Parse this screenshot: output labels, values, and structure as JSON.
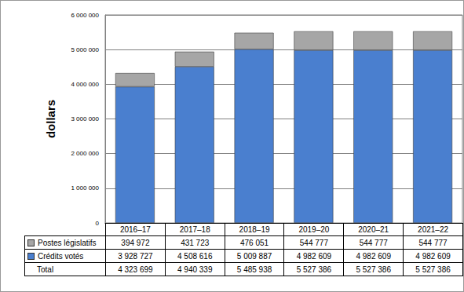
{
  "chart_data": {
    "type": "bar",
    "stacked": true,
    "y_label": "dollars",
    "categories": [
      "2016–17",
      "2017–18",
      "2018–19",
      "2019–20",
      "2020–21",
      "2021–22"
    ],
    "series": [
      {
        "name": "Postes législatifs",
        "color": "#a6a6a6",
        "values": [
          394972,
          431723,
          476051,
          544777,
          544777,
          544777
        ],
        "value_labels": [
          "394 972",
          "431 723",
          "476 051",
          "544 777",
          "544 777",
          "544 777"
        ]
      },
      {
        "name": "Crédits votés",
        "color": "#4a7fcf",
        "values": [
          3928727,
          4508616,
          5009887,
          4982609,
          4982609,
          4982609
        ],
        "value_labels": [
          "3 928 727",
          "4 508 616",
          "5 009 887",
          "4 982 609",
          "4 982 609",
          "4 982 609"
        ]
      }
    ],
    "totals": {
      "name": "Total",
      "values": [
        4323699,
        4940339,
        5485938,
        5527386,
        5527386,
        5527386
      ],
      "value_labels": [
        "4 323 699",
        "4 940 339",
        "5 485 938",
        "5 527 386",
        "5 527 386",
        "5 527 386"
      ]
    },
    "ylim": [
      0,
      6000000
    ],
    "yticks": [
      0,
      {
        "value": 1000000,
        "label": "1 000 000"
      },
      {
        "value": 2000000,
        "label": "2 000 000"
      },
      {
        "value": 3000000,
        "label": "3 000 000"
      },
      {
        "value": 4000000,
        "label": "4 000 000"
      },
      {
        "value": 5000000,
        "label": "5 000 000"
      },
      {
        "value": 6000000,
        "label": "6 000 000"
      }
    ],
    "grid": true
  }
}
